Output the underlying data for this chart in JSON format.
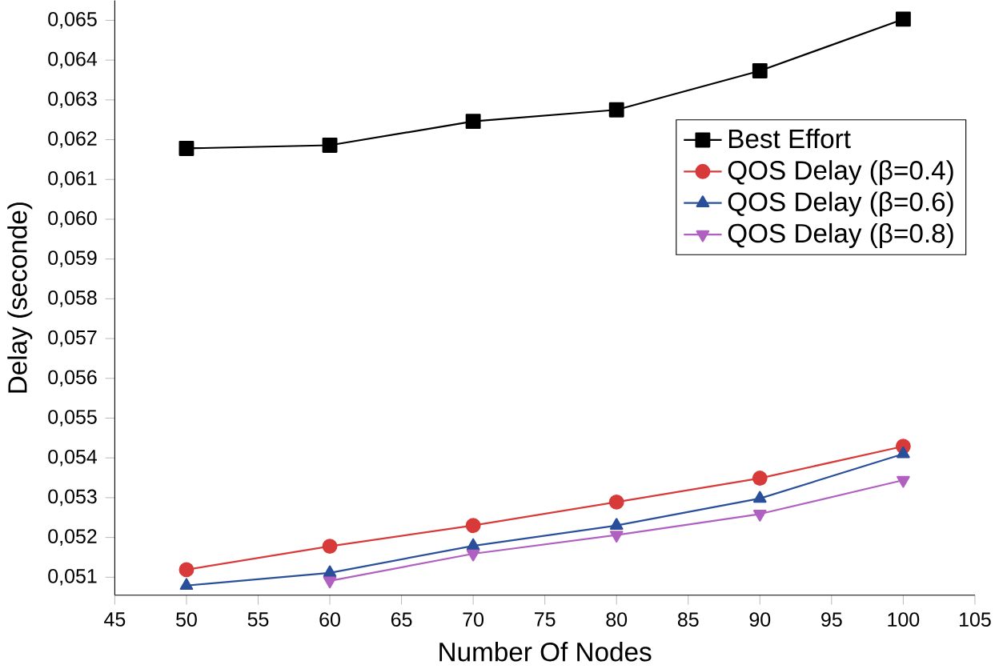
{
  "chart_data": {
    "type": "line",
    "xlabel": "Number Of Nodes",
    "ylabel": "Delay (seconde)",
    "x": [
      50,
      60,
      70,
      80,
      90,
      100
    ],
    "xlim": [
      45,
      105
    ],
    "xticks": [
      45,
      50,
      55,
      60,
      65,
      70,
      75,
      80,
      85,
      90,
      95,
      100,
      105
    ],
    "ylim": [
      0.05055,
      0.0655
    ],
    "yticks": [
      {
        "value": 0.051,
        "label": "0,051"
      },
      {
        "value": 0.052,
        "label": "0,052"
      },
      {
        "value": 0.053,
        "label": "0,053"
      },
      {
        "value": 0.054,
        "label": "0,054"
      },
      {
        "value": 0.055,
        "label": "0,055"
      },
      {
        "value": 0.056,
        "label": "0,056"
      },
      {
        "value": 0.057,
        "label": "0,057"
      },
      {
        "value": 0.058,
        "label": "0,058"
      },
      {
        "value": 0.059,
        "label": "0,059"
      },
      {
        "value": 0.06,
        "label": "0,060"
      },
      {
        "value": 0.061,
        "label": "0,061"
      },
      {
        "value": 0.062,
        "label": "0,062"
      },
      {
        "value": 0.063,
        "label": "0,063"
      },
      {
        "value": 0.064,
        "label": "0,064"
      },
      {
        "value": 0.065,
        "label": "0,065"
      }
    ],
    "legend": "top right",
    "grid": false,
    "line_style": "solid",
    "series": [
      {
        "name": "Best Effort",
        "color": "#000000",
        "marker": "square",
        "values": [
          0.06178,
          0.06186,
          0.06246,
          0.06275,
          0.06373,
          0.06503
        ]
      },
      {
        "name": "QOS Delay (β=0.4)",
        "color": "#d83a3a",
        "marker": "circle",
        "values": [
          0.05119,
          0.05178,
          0.0523,
          0.05289,
          0.05349,
          0.05429
        ]
      },
      {
        "name": "QOS Delay (β=0.6)",
        "color": "#2a4f9a",
        "marker": "triangle",
        "values": [
          0.05079,
          0.05111,
          0.05179,
          0.0523,
          0.05298,
          0.0541
        ]
      },
      {
        "name": "QOS Delay (β=0.8)",
        "color": "#b060c0",
        "marker": "triangle",
        "values": [
          null,
          0.05091,
          0.05159,
          0.05206,
          0.05259,
          0.05344
        ]
      }
    ]
  }
}
